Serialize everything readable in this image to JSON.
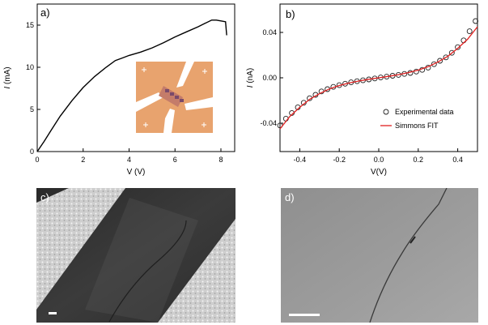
{
  "panels": {
    "a": {
      "label": "a)"
    },
    "b": {
      "label": "b)"
    },
    "c": {
      "label": "c)"
    },
    "d": {
      "label": "d)"
    }
  },
  "chart_data": [
    {
      "type": "line",
      "panel": "a",
      "xlabel": "V (V)",
      "ylabel_italic": "I",
      "ylabel_unit": " (mA)",
      "xlim": [
        0,
        8.6
      ],
      "ylim": [
        0,
        17.5
      ],
      "xticks": [
        0,
        2,
        4,
        6,
        8
      ],
      "yticks": [
        0,
        5,
        10,
        15
      ],
      "series": [
        {
          "name": "I-V",
          "x": [
            0,
            0.3,
            0.6,
            1.0,
            1.5,
            2.0,
            2.5,
            3.0,
            3.4,
            3.7,
            4.0,
            4.5,
            5.0,
            5.5,
            6.0,
            6.5,
            7.0,
            7.3,
            7.6,
            7.8,
            8.0,
            8.2,
            8.25
          ],
          "y": [
            0,
            1.2,
            2.5,
            4.2,
            6.0,
            7.6,
            8.9,
            10.0,
            10.8,
            11.1,
            11.4,
            11.8,
            12.3,
            12.9,
            13.6,
            14.2,
            14.8,
            15.2,
            15.6,
            15.6,
            15.5,
            15.4,
            13.8
          ]
        }
      ],
      "inset": {
        "description": "device micrograph"
      }
    },
    {
      "type": "scatter",
      "panel": "b",
      "xlabel": "V(V)",
      "ylabel_italic": "I",
      "ylabel_unit": " (nA)",
      "xlim": [
        -0.5,
        0.5
      ],
      "ylim": [
        -0.065,
        0.065
      ],
      "xticks": [
        -0.4,
        -0.2,
        0.0,
        0.2,
        0.4
      ],
      "xtick_labels": [
        "-0.4",
        "-0.2",
        "0.0",
        "0.2",
        "0.4"
      ],
      "yticks": [
        -0.04,
        0.0,
        0.04
      ],
      "ytick_labels": [
        "-0.04",
        "0.00",
        "0.04"
      ],
      "legend": [
        {
          "name": "Experimental data",
          "marker": "circle",
          "color": "#222222"
        },
        {
          "name": "Simmons FIT",
          "marker": "line",
          "color": "#e02020"
        }
      ],
      "legend_position": "bottom-right",
      "series": [
        {
          "name": "Experimental data",
          "x": [
            -0.5,
            -0.47,
            -0.44,
            -0.41,
            -0.38,
            -0.35,
            -0.32,
            -0.29,
            -0.26,
            -0.23,
            -0.2,
            -0.17,
            -0.14,
            -0.11,
            -0.08,
            -0.05,
            -0.02,
            0.01,
            0.04,
            0.07,
            0.1,
            0.13,
            0.16,
            0.19,
            0.22,
            0.25,
            0.28,
            0.31,
            0.34,
            0.37,
            0.4,
            0.43,
            0.46,
            0.49
          ],
          "y": [
            -0.042,
            -0.036,
            -0.031,
            -0.026,
            -0.022,
            -0.018,
            -0.015,
            -0.012,
            -0.01,
            -0.008,
            -0.0065,
            -0.0052,
            -0.004,
            -0.003,
            -0.0022,
            -0.0014,
            -0.0006,
            0.0003,
            0.001,
            0.0018,
            0.0026,
            0.0034,
            0.0043,
            0.0055,
            0.007,
            0.009,
            0.012,
            0.015,
            0.018,
            0.022,
            0.027,
            0.033,
            0.041,
            0.05
          ]
        },
        {
          "name": "Simmons FIT",
          "x": [
            -0.5,
            -0.45,
            -0.4,
            -0.35,
            -0.3,
            -0.25,
            -0.2,
            -0.15,
            -0.1,
            -0.05,
            0.0,
            0.05,
            0.1,
            0.15,
            0.2,
            0.25,
            0.3,
            0.35,
            0.4,
            0.45,
            0.5
          ],
          "y": [
            -0.045,
            -0.034,
            -0.026,
            -0.019,
            -0.014,
            -0.0098,
            -0.0068,
            -0.0046,
            -0.0028,
            -0.0013,
            0.0,
            0.0013,
            0.0028,
            0.0046,
            0.0068,
            0.0098,
            0.014,
            0.019,
            0.026,
            0.034,
            0.045
          ]
        }
      ]
    }
  ]
}
